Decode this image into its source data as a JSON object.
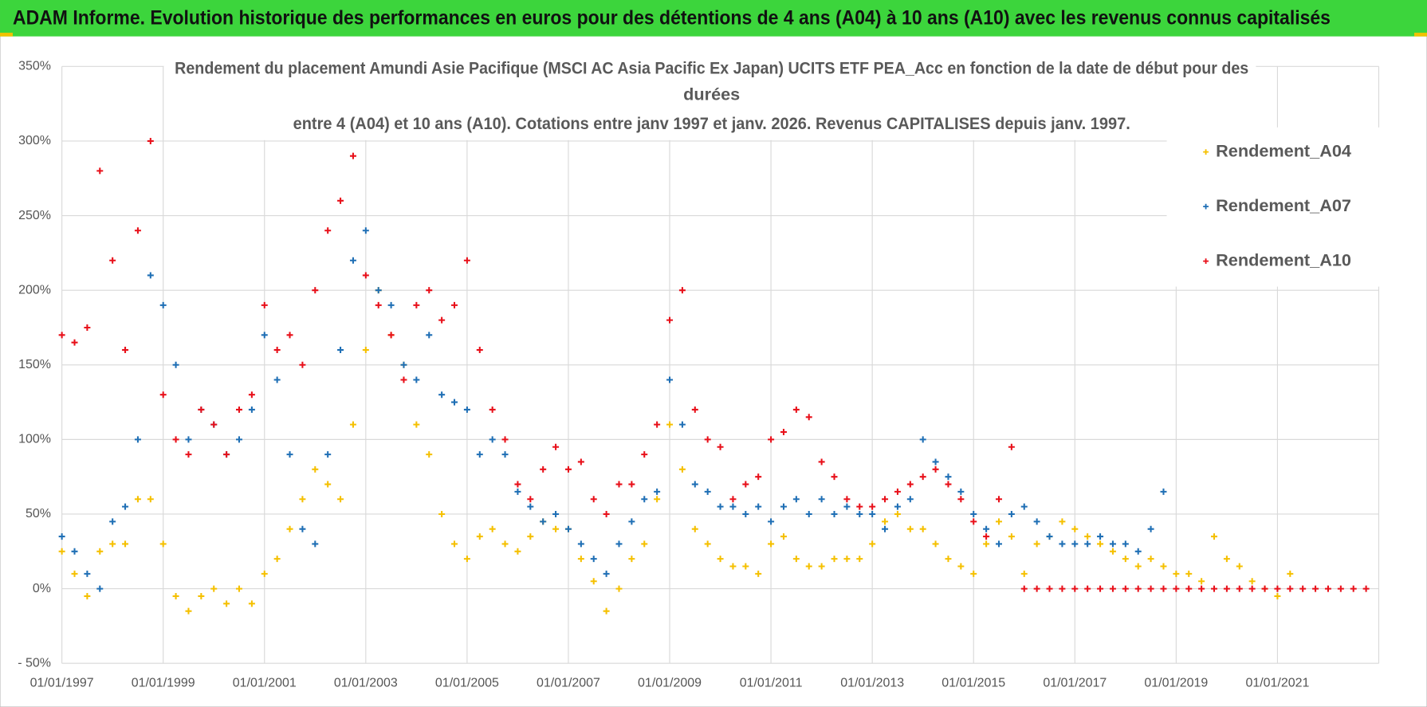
{
  "header": {
    "title": "ADAM Informe. Evolution historique des performances en euros pour des détentions de 4 ans (A04) à 10 ans (A10) avec les revenus connus capitalisés"
  },
  "chart_data": {
    "type": "scatter",
    "title_lines": [
      "Rendement du placement Amundi Asie Pacifique (MSCI AC Asia Pacific Ex Japan) UCITS ETF PEA_Acc en fonction de la date de début pour des",
      "durées",
      "entre 4 (A04) et 10 ans (A10).  Cotations entre janv 1997 et janv. 2026. Revenus CAPITALISES depuis janv. 1997."
    ],
    "x": [
      "01/01/1997",
      "01/04/1997",
      "01/07/1997",
      "01/10/1997",
      "01/01/1998",
      "01/04/1998",
      "01/07/1998",
      "01/10/1998",
      "01/01/1999",
      "01/04/1999",
      "01/07/1999",
      "01/10/1999",
      "01/01/2000",
      "01/04/2000",
      "01/07/2000",
      "01/10/2000",
      "01/01/2001",
      "01/04/2001",
      "01/07/2001",
      "01/10/2001",
      "01/01/2002",
      "01/04/2002",
      "01/07/2002",
      "01/10/2002",
      "01/01/2003",
      "01/04/2003",
      "01/07/2003",
      "01/10/2003",
      "01/01/2004",
      "01/04/2004",
      "01/07/2004",
      "01/10/2004",
      "01/01/2005",
      "01/04/2005",
      "01/07/2005",
      "01/10/2005",
      "01/01/2006",
      "01/04/2006",
      "01/07/2006",
      "01/10/2006",
      "01/01/2007",
      "01/04/2007",
      "01/07/2007",
      "01/10/2007",
      "01/01/2008",
      "01/04/2008",
      "01/07/2008",
      "01/10/2008",
      "01/01/2009",
      "01/04/2009",
      "01/07/2009",
      "01/10/2009",
      "01/01/2010",
      "01/04/2010",
      "01/07/2010",
      "01/10/2010",
      "01/01/2011",
      "01/04/2011",
      "01/07/2011",
      "01/10/2011",
      "01/01/2012",
      "01/04/2012",
      "01/07/2012",
      "01/10/2012",
      "01/01/2013",
      "01/04/2013",
      "01/07/2013",
      "01/10/2013",
      "01/01/2014",
      "01/04/2014",
      "01/07/2014",
      "01/10/2014",
      "01/01/2015",
      "01/04/2015",
      "01/07/2015",
      "01/10/2015",
      "01/01/2016",
      "01/04/2016",
      "01/07/2016",
      "01/10/2016",
      "01/01/2017",
      "01/04/2017",
      "01/07/2017",
      "01/10/2017",
      "01/01/2018",
      "01/04/2018",
      "01/07/2018",
      "01/10/2018",
      "01/01/2019",
      "01/04/2019",
      "01/07/2019",
      "01/10/2019",
      "01/01/2020",
      "01/04/2020",
      "01/07/2020",
      "01/10/2020",
      "01/01/2021",
      "01/04/2021",
      "01/07/2021",
      "01/10/2021",
      "01/01/2022",
      "01/04/2022",
      "01/07/2022",
      "01/10/2022"
    ],
    "series": [
      {
        "name": "Rendement_A04",
        "color": "#f5c000",
        "values": [
          25,
          10,
          -5,
          25,
          30,
          30,
          60,
          60,
          30,
          -5,
          -15,
          -5,
          0,
          -10,
          0,
          -10,
          10,
          20,
          40,
          60,
          80,
          70,
          60,
          110,
          160,
          200,
          170,
          150,
          110,
          90,
          50,
          30,
          20,
          35,
          40,
          30,
          25,
          35,
          45,
          40,
          40,
          20,
          5,
          -15,
          0,
          20,
          30,
          60,
          110,
          80,
          40,
          30,
          20,
          15,
          15,
          10,
          30,
          35,
          20,
          15,
          15,
          20,
          20,
          20,
          30,
          45,
          50,
          40,
          40,
          30,
          20,
          15,
          10,
          30,
          45,
          35,
          10,
          30,
          35,
          45,
          40,
          35,
          30,
          25,
          20,
          15,
          20,
          15,
          10,
          10,
          5,
          35,
          20,
          15,
          5,
          0,
          -5,
          10,
          null,
          null,
          null,
          null,
          null,
          null
        ]
      },
      {
        "name": "Rendement_A07",
        "color": "#1f6fb5",
        "values": [
          35,
          25,
          10,
          0,
          45,
          55,
          100,
          210,
          190,
          150,
          100,
          120,
          110,
          90,
          100,
          120,
          170,
          140,
          90,
          40,
          30,
          90,
          160,
          220,
          240,
          200,
          190,
          150,
          140,
          170,
          130,
          125,
          120,
          90,
          100,
          90,
          65,
          55,
          45,
          50,
          40,
          30,
          20,
          10,
          30,
          45,
          60,
          65,
          140,
          110,
          70,
          65,
          55,
          55,
          50,
          55,
          45,
          55,
          60,
          50,
          60,
          50,
          55,
          50,
          50,
          40,
          55,
          60,
          100,
          85,
          75,
          65,
          50,
          40,
          30,
          50,
          55,
          45,
          35,
          30,
          30,
          30,
          35,
          30,
          30,
          25,
          40,
          65,
          null,
          null,
          null,
          null,
          null,
          null,
          null,
          null,
          null,
          null,
          null,
          null,
          null,
          null,
          null,
          null
        ]
      },
      {
        "name": "Rendement_A10",
        "color": "#e8101a",
        "values": [
          170,
          165,
          175,
          280,
          220,
          160,
          240,
          300,
          130,
          100,
          90,
          120,
          110,
          90,
          120,
          130,
          190,
          160,
          170,
          150,
          200,
          240,
          260,
          290,
          210,
          190,
          170,
          140,
          190,
          200,
          180,
          190,
          220,
          160,
          120,
          100,
          70,
          60,
          80,
          95,
          80,
          85,
          60,
          50,
          70,
          70,
          90,
          110,
          180,
          200,
          120,
          100,
          95,
          60,
          70,
          75,
          100,
          105,
          120,
          115,
          85,
          75,
          60,
          55,
          55,
          60,
          65,
          70,
          75,
          80,
          70,
          60,
          45,
          35,
          60,
          95,
          0,
          0,
          0,
          0,
          0,
          0,
          0,
          0,
          0,
          0,
          0,
          0,
          0,
          0,
          0,
          0,
          0,
          0,
          0,
          0,
          0,
          0,
          0,
          0,
          0,
          0,
          0,
          0
        ]
      }
    ],
    "xlim": [
      "01/01/1997",
      "01/01/2023"
    ],
    "xticks": [
      "01/01/1997",
      "01/01/1999",
      "01/01/2001",
      "01/01/2003",
      "01/01/2005",
      "01/01/2007",
      "01/01/2009",
      "01/01/2011",
      "01/01/2013",
      "01/01/2015",
      "01/01/2017",
      "01/01/2019",
      "01/01/2021"
    ],
    "ylim": [
      -50,
      350
    ],
    "yticks": [
      {
        "value": -50,
        "label": "- 50%"
      },
      {
        "value": 0,
        "label": "0%"
      },
      {
        "value": 50,
        "label": "50%"
      },
      {
        "value": 100,
        "label": "100%"
      },
      {
        "value": 150,
        "label": "150%"
      },
      {
        "value": 200,
        "label": "200%"
      },
      {
        "value": 250,
        "label": "250%"
      },
      {
        "value": 300,
        "label": "300%"
      },
      {
        "value": 350,
        "label": "350%"
      }
    ],
    "grid": true,
    "legend": "upper right"
  }
}
